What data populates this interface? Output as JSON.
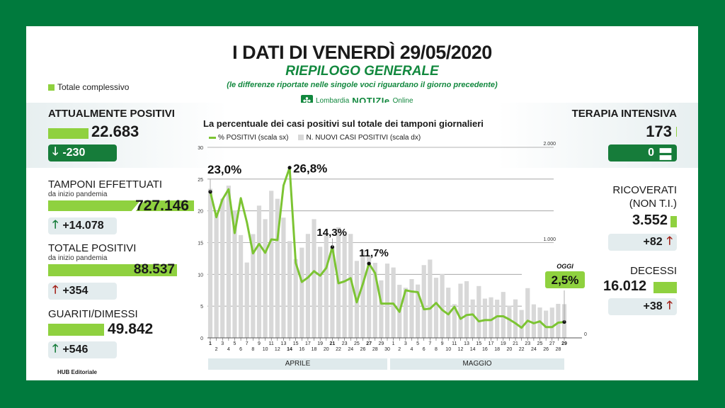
{
  "header": {
    "title": "I DATI DI VENERDÌ 29/05/2020",
    "subtitle": "RIEPILOGO GENERALE",
    "note": "(le differenze riportate nelle singole voci riguardano il giorno precedente)",
    "brand_left": "Lombardia",
    "brand_mid": "NOTIZIe",
    "brand_right": "Online",
    "legend_total": "Totale complessivo"
  },
  "left": {
    "attualmente_positivi": {
      "label": "ATTUALMENTE POSITIVI",
      "value": "22.683",
      "delta": "-230",
      "direction": "down"
    },
    "tamponi": {
      "label": "TAMPONI EFFETTUATI",
      "sub": "da inizio pandemia",
      "value": "727.146",
      "delta": "+14.078",
      "direction": "up"
    },
    "totale_positivi": {
      "label": "TOTALE POSITIVI",
      "sub": "da inizio pandemia",
      "value": "88.537",
      "delta": "+354",
      "direction": "up"
    },
    "guariti": {
      "label": "GUARITI/DIMESSI",
      "value": "49.842",
      "delta": "+546",
      "direction": "up"
    }
  },
  "right": {
    "terapia_intensiva": {
      "label": "TERAPIA INTENSIVA",
      "value": "173",
      "delta": "0",
      "direction": "equal"
    },
    "ricoverati": {
      "label": "RICOVERATI",
      "label2": "(NON T.I.)",
      "value": "3.552",
      "delta": "+82",
      "direction": "up"
    },
    "decessi": {
      "label": "DECESSI",
      "value": "16.012",
      "delta": "+38",
      "direction": "up"
    }
  },
  "footer": {
    "credit": "HUB Editoriale"
  },
  "colors": {
    "frame": "#007a3d",
    "accent_green": "#12883e",
    "bar_green": "#8fd13f",
    "line_green": "#7cc433",
    "up_red": "#a3231b",
    "bar_gray": "#d8d8d8"
  },
  "chart_data": {
    "type": "bar+line",
    "title": "La percentuale dei casi positivi sul totale dei tamponi giornalieri",
    "legend": [
      "% POSITIVI (scala sx)",
      "N. NUOVI CASI POSITIVI (scala dx)"
    ],
    "y_left": {
      "ticks": [
        0,
        5,
        10,
        15,
        20,
        25,
        30
      ],
      "range": [
        0,
        30
      ]
    },
    "y_right": {
      "ticks": [
        "0",
        "1.000",
        "2.000"
      ],
      "range": [
        0,
        2000
      ]
    },
    "months": [
      "APRILE",
      "MAGGIO"
    ],
    "x": [
      "1/4",
      "2/4",
      "3/4",
      "4/4",
      "5/4",
      "6/4",
      "7/4",
      "8/4",
      "9/4",
      "10/4",
      "11/4",
      "12/4",
      "13/4",
      "14/4",
      "15/4",
      "16/4",
      "17/4",
      "18/4",
      "19/4",
      "20/4",
      "21/4",
      "22/4",
      "23/4",
      "24/4",
      "25/4",
      "26/4",
      "27/4",
      "28/4",
      "29/4",
      "30/4",
      "1/5",
      "2/5",
      "3/5",
      "4/5",
      "5/5",
      "6/5",
      "7/5",
      "8/5",
      "9/5",
      "10/5",
      "11/5",
      "12/5",
      "13/5",
      "14/5",
      "15/5",
      "16/5",
      "17/5",
      "18/5",
      "19/5",
      "20/5",
      "21/5",
      "22/5",
      "23/5",
      "24/5",
      "25/5",
      "26/5",
      "27/5",
      "28/5",
      "29/5"
    ],
    "x_tick_labels_april": [
      "1",
      "2",
      "3",
      "4",
      "5",
      "6",
      "7",
      "8",
      "9",
      "10",
      "11",
      "12",
      "13",
      "14",
      "15",
      "16",
      "17",
      "18",
      "19",
      "20",
      "21",
      "22",
      "23",
      "24",
      "25",
      "26",
      "27",
      "28",
      "29",
      "30"
    ],
    "x_tick_labels_may": [
      "1",
      "2",
      "3",
      "4",
      "5",
      "6",
      "7",
      "8",
      "9",
      "10",
      "11",
      "12",
      "13",
      "14",
      "15",
      "16",
      "17",
      "18",
      "19",
      "20",
      "21",
      "22",
      "23",
      "24",
      "25",
      "26",
      "27",
      "28",
      "29"
    ],
    "series": [
      {
        "name": "% POSITIVI (scala sx)",
        "values": [
          23.0,
          19.0,
          21.8,
          23.4,
          16.5,
          22.0,
          18.2,
          13.3,
          14.8,
          13.4,
          15.5,
          15.4,
          24.0,
          26.8,
          11.8,
          8.8,
          9.5,
          10.5,
          9.8,
          11.0,
          14.3,
          8.6,
          8.9,
          9.4,
          5.6,
          8.5,
          11.7,
          10.2,
          5.4,
          5.4,
          5.4,
          4.1,
          7.5,
          7.3,
          7.2,
          4.5,
          4.6,
          5.5,
          4.4,
          3.7,
          4.9,
          3.0,
          3.6,
          3.7,
          2.6,
          2.8,
          2.8,
          3.4,
          3.4,
          2.9,
          2.3,
          1.6,
          2.7,
          2.3,
          2.6,
          1.7,
          1.7,
          2.4,
          2.5
        ]
      },
      {
        "name": "N. NUOVI CASI POSITIVI (scala dx)",
        "values": [
          1565,
          1292,
          1461,
          1598,
          1337,
          1079,
          791,
          1089,
          1388,
          1246,
          1544,
          1460,
          1262,
          1016,
          827,
          947,
          1091,
          1246,
          956,
          1081,
          960,
          1161,
          1091,
          1091,
          808,
          920,
          863,
          788,
          604,
          780,
          739,
          557,
          526,
          617,
          560,
          764,
          822,
          631,
          670,
          527,
          354,
          569,
          595,
          403,
          544,
          412,
          426,
          401,
          482,
          337,
          404,
          293,
          522,
          352,
          319,
          286,
          318,
          357,
          354
        ]
      }
    ],
    "annotations": [
      {
        "x": "1/4",
        "label": "23,0%"
      },
      {
        "x": "14/4",
        "label": "26,8%"
      },
      {
        "x": "21/4",
        "label": "14,3%"
      },
      {
        "x": "27/4",
        "label": "11,7%"
      },
      {
        "x": "29/5",
        "label": "2,5%",
        "tag": "OGGI"
      }
    ],
    "grid": true
  }
}
